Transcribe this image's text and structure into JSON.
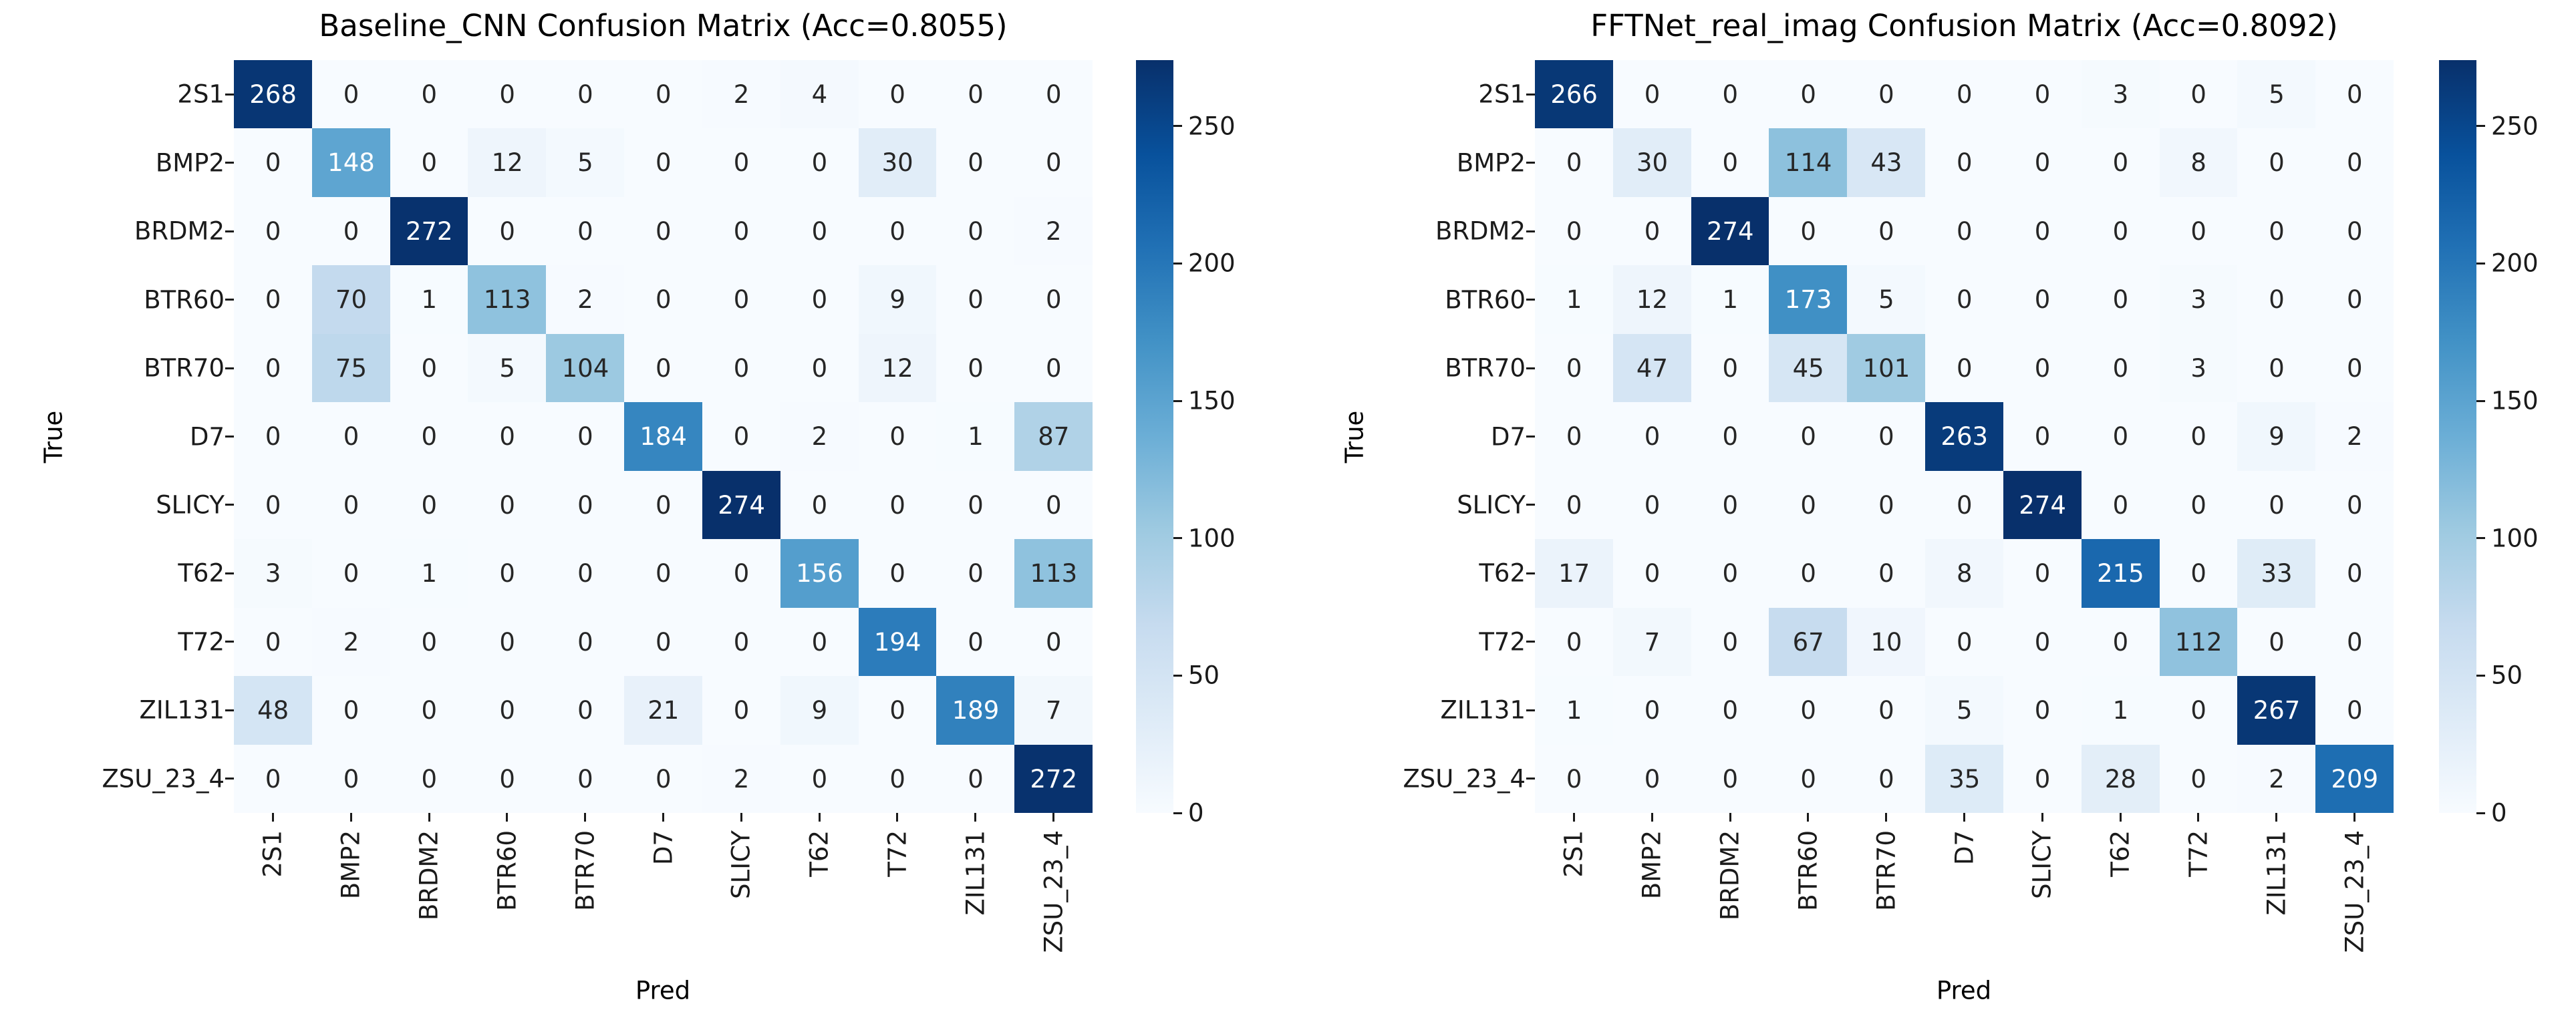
{
  "figure": {
    "background": "#ffffff",
    "colormap_name": "Blues",
    "colormap_hex": [
      "#f7fbff",
      "#deebf7",
      "#c6dbef",
      "#9ecae1",
      "#6baed6",
      "#4292c6",
      "#2171b5",
      "#08519c",
      "#08306b"
    ],
    "annotation_dark_text": "#262626",
    "annotation_light_text": "#ffffff",
    "tick_color": "#1a1a1a"
  },
  "chart_data": [
    {
      "type": "heatmap",
      "title": "Baseline_CNN Confusion Matrix (Acc=0.8055)",
      "xlabel": "Pred",
      "ylabel": "True",
      "categories": [
        "2S1",
        "BMP2",
        "BRDM2",
        "BTR60",
        "BTR70",
        "D7",
        "SLICY",
        "T62",
        "T72",
        "ZIL131",
        "ZSU_23_4"
      ],
      "matrix": [
        [
          268,
          0,
          0,
          0,
          0,
          0,
          2,
          4,
          0,
          0,
          0
        ],
        [
          0,
          148,
          0,
          12,
          5,
          0,
          0,
          0,
          30,
          0,
          0
        ],
        [
          0,
          0,
          272,
          0,
          0,
          0,
          0,
          0,
          0,
          0,
          2
        ],
        [
          0,
          70,
          1,
          113,
          2,
          0,
          0,
          0,
          9,
          0,
          0
        ],
        [
          0,
          75,
          0,
          5,
          104,
          0,
          0,
          0,
          12,
          0,
          0
        ],
        [
          0,
          0,
          0,
          0,
          0,
          184,
          0,
          2,
          0,
          1,
          87
        ],
        [
          0,
          0,
          0,
          0,
          0,
          0,
          274,
          0,
          0,
          0,
          0
        ],
        [
          3,
          0,
          1,
          0,
          0,
          0,
          0,
          156,
          0,
          0,
          113
        ],
        [
          0,
          2,
          0,
          0,
          0,
          0,
          0,
          0,
          194,
          0,
          0
        ],
        [
          48,
          0,
          0,
          0,
          0,
          21,
          0,
          9,
          0,
          189,
          7
        ],
        [
          0,
          0,
          0,
          0,
          0,
          0,
          2,
          0,
          0,
          0,
          272
        ]
      ],
      "vmin": 0,
      "vmax": 274,
      "colorbar_ticks": [
        0,
        50,
        100,
        150,
        200,
        250
      ],
      "legend_position": "right-colorbar",
      "grid": false
    },
    {
      "type": "heatmap",
      "title": "FFTNet_real_imag Confusion Matrix (Acc=0.8092)",
      "xlabel": "Pred",
      "ylabel": "True",
      "categories": [
        "2S1",
        "BMP2",
        "BRDM2",
        "BTR60",
        "BTR70",
        "D7",
        "SLICY",
        "T62",
        "T72",
        "ZIL131",
        "ZSU_23_4"
      ],
      "matrix": [
        [
          266,
          0,
          0,
          0,
          0,
          0,
          0,
          3,
          0,
          5,
          0
        ],
        [
          0,
          30,
          0,
          114,
          43,
          0,
          0,
          0,
          8,
          0,
          0
        ],
        [
          0,
          0,
          274,
          0,
          0,
          0,
          0,
          0,
          0,
          0,
          0
        ],
        [
          1,
          12,
          1,
          173,
          5,
          0,
          0,
          0,
          3,
          0,
          0
        ],
        [
          0,
          47,
          0,
          45,
          101,
          0,
          0,
          0,
          3,
          0,
          0
        ],
        [
          0,
          0,
          0,
          0,
          0,
          263,
          0,
          0,
          0,
          9,
          2
        ],
        [
          0,
          0,
          0,
          0,
          0,
          0,
          274,
          0,
          0,
          0,
          0
        ],
        [
          17,
          0,
          0,
          0,
          0,
          8,
          0,
          215,
          0,
          33,
          0
        ],
        [
          0,
          7,
          0,
          67,
          10,
          0,
          0,
          0,
          112,
          0,
          0
        ],
        [
          1,
          0,
          0,
          0,
          0,
          5,
          0,
          1,
          0,
          267,
          0
        ],
        [
          0,
          0,
          0,
          0,
          0,
          35,
          0,
          28,
          0,
          2,
          209
        ]
      ],
      "vmin": 0,
      "vmax": 274,
      "colorbar_ticks": [
        0,
        50,
        100,
        150,
        200,
        250
      ],
      "legend_position": "right-colorbar",
      "grid": false
    }
  ]
}
